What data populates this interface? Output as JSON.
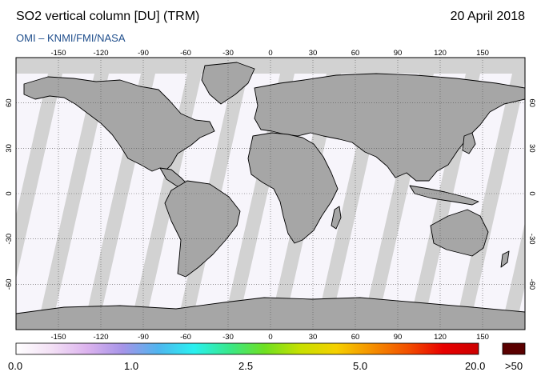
{
  "header": {
    "title": "SO2 vertical column [DU] (TRM)",
    "date": "20 April 2018",
    "credit": "OMI  –  KNMI/FMI/NASA"
  },
  "map": {
    "projection": "equirectangular",
    "lon_range": [
      -180,
      180
    ],
    "lat_range": [
      -90,
      90
    ],
    "lon_ticks": [
      -150,
      -120,
      -90,
      -60,
      -30,
      0,
      30,
      60,
      90,
      120,
      150
    ],
    "lat_ticks": [
      60,
      30,
      0,
      -30,
      -60
    ],
    "gridlines": "dotted",
    "colors": {
      "ocean_background": "#d2d2d2",
      "orbit_swath": "#f7f5fb",
      "swath_gap": "#cfcfcf",
      "land_no_data": "#a6a6a6",
      "coastline": "#000000"
    }
  },
  "colorbar": {
    "tick_labels": [
      "0.0",
      "1.0",
      "2.5",
      "5.0",
      "20.0"
    ],
    "overflow_label": ">50",
    "overflow_color": "#5a0000",
    "gradient": [
      "#ffffff",
      "#f3e0f5",
      "#dcb3ee",
      "#a694e8",
      "#4fb5ef",
      "#29f0f0",
      "#38e88a",
      "#6fe020",
      "#c8e000",
      "#f5d000",
      "#f59000",
      "#f25000",
      "#e80000",
      "#cc0000"
    ]
  }
}
